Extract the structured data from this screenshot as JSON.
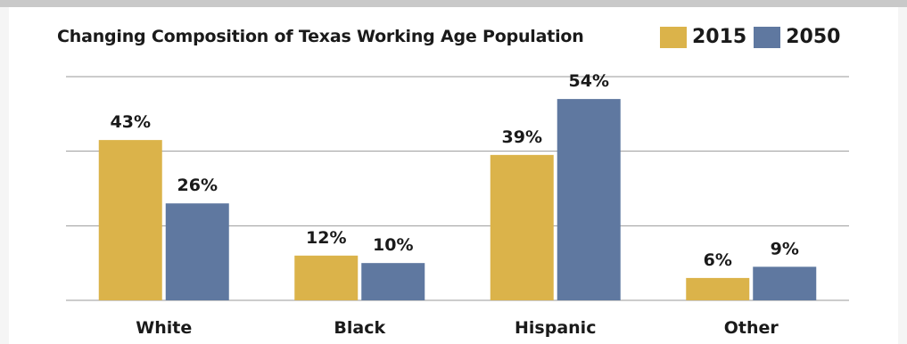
{
  "chart_data": {
    "type": "bar",
    "title": "Changing Composition of Texas Working Age Population",
    "categories": [
      "White",
      "Black",
      "Hispanic",
      "Other"
    ],
    "series": [
      {
        "name": "2015",
        "values": [
          43,
          12,
          39,
          6
        ],
        "labels": [
          "43%",
          "12%",
          "39%",
          "6%"
        ],
        "color": "#dbb34a"
      },
      {
        "name": "2050",
        "values": [
          26,
          10,
          54,
          9
        ],
        "labels": [
          "26%",
          "10%",
          "54%",
          "9%"
        ],
        "color": "#5f78a0"
      }
    ],
    "ylim": [
      0,
      60
    ],
    "grid": true,
    "legend_position": "top-right"
  }
}
